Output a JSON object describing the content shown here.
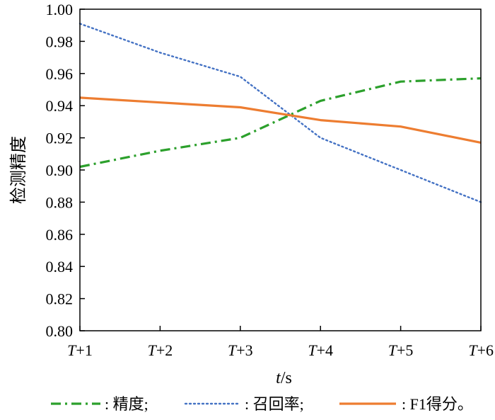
{
  "chart_data": {
    "type": "line",
    "title": "",
    "xlabel": "t/s",
    "xlabel_italic": "t",
    "xlabel_rest": "/s",
    "ylabel": "检测精度",
    "categories": [
      "T+1",
      "T+2",
      "T+3",
      "T+4",
      "T+5",
      "T+6"
    ],
    "x_tick_prefix": "T",
    "x_tick_suffixes": [
      "+1",
      "+2",
      "+3",
      "+4",
      "+5",
      "+6"
    ],
    "yticks": [
      "0.80",
      "0.82",
      "0.84",
      "0.86",
      "0.88",
      "0.90",
      "0.92",
      "0.94",
      "0.96",
      "0.98",
      "1.00"
    ],
    "ylim": [
      0.8,
      1.0
    ],
    "grid": false,
    "legend_position": "bottom",
    "series": [
      {
        "name": "精度",
        "legend_label": "精度;",
        "color": "#2ca02c",
        "dash": "dashdot",
        "values": [
          0.902,
          0.912,
          0.92,
          0.943,
          0.955,
          0.957
        ]
      },
      {
        "name": "召回率",
        "legend_label": "召回率;",
        "color": "#4472c4",
        "dash": "dotted",
        "values": [
          0.991,
          0.973,
          0.958,
          0.92,
          0.9,
          0.88
        ]
      },
      {
        "name": "F1得分",
        "legend_label": "F1得分。",
        "color": "#ed7d31",
        "dash": "solid",
        "values": [
          0.945,
          0.942,
          0.939,
          0.931,
          0.927,
          0.917
        ]
      }
    ]
  }
}
